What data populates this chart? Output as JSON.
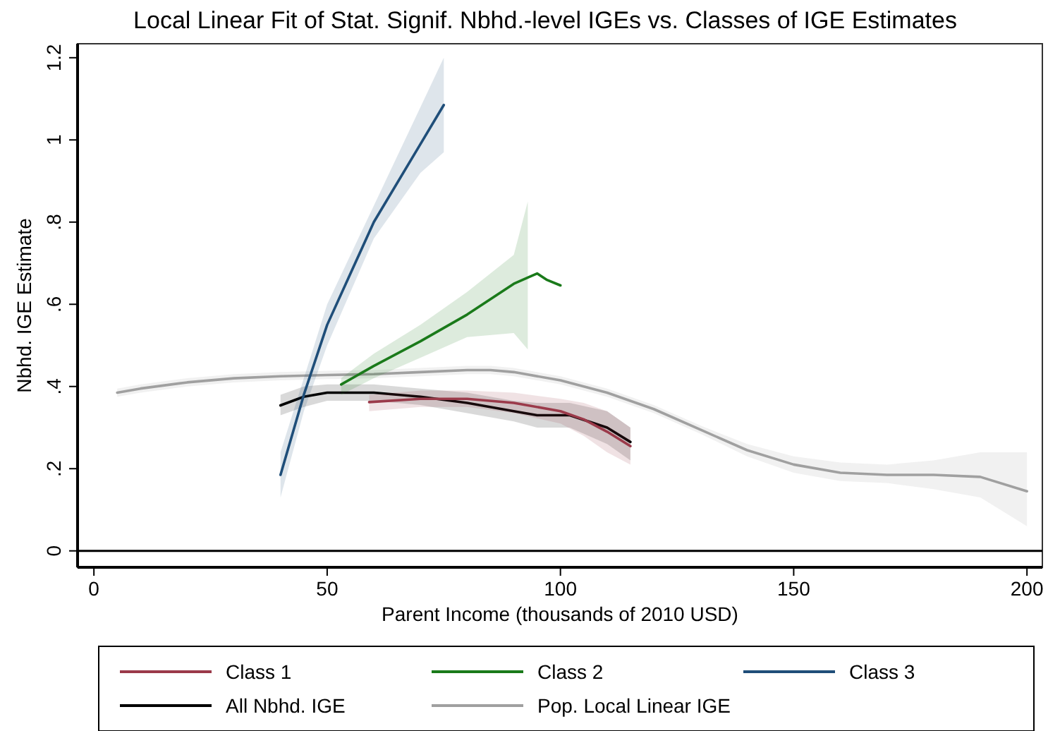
{
  "chart_data": {
    "type": "line",
    "title": "Local Linear Fit of Stat. Signif. Nbhd.-level IGEs vs. Classes of IGE Estimates",
    "xlabel": "Parent Income (thousands of 2010 USD)",
    "ylabel": "Nbhd. IGE Estimate",
    "xlim": [
      -3.5,
      203.3
    ],
    "xticks": [
      0,
      50,
      100,
      150,
      200
    ],
    "ylim": [
      -0.04,
      1.234
    ],
    "yticks": [
      0,
      {
        "value": 0.2,
        "label": ".2"
      },
      {
        "value": 0.4,
        "label": ".4"
      },
      {
        "value": 0.6,
        "label": ".6"
      },
      {
        "value": 0.8,
        "label": ".8"
      },
      1,
      {
        "value": 1.2,
        "label": "1.2"
      }
    ],
    "grid": false,
    "legend": "bottom",
    "line_style": "solid",
    "marker": "none",
    "ref_lines": [
      {
        "axis": "y",
        "value": 0,
        "color": "#000000"
      }
    ],
    "series": [
      {
        "name": "Class 1",
        "color": "#9b3a4a",
        "x": [
          59,
          70,
          80,
          90,
          100,
          105,
          110,
          115
        ],
        "values": [
          0.362,
          0.37,
          0.37,
          0.36,
          0.34,
          0.32,
          0.29,
          0.255
        ],
        "lower": [
          0.34,
          0.35,
          0.35,
          0.335,
          0.31,
          0.28,
          0.24,
          0.21
        ],
        "upper": [
          0.38,
          0.39,
          0.39,
          0.385,
          0.37,
          0.36,
          0.34,
          0.3
        ]
      },
      {
        "name": "Class 2",
        "color": "#1a7a1a",
        "x": [
          53,
          60,
          70,
          80,
          90,
          93,
          95,
          97,
          100
        ],
        "values": [
          0.405,
          0.45,
          0.51,
          0.575,
          0.65,
          0.665,
          0.675,
          0.66,
          0.646
        ],
        "lower": [
          0.38,
          0.42,
          0.47,
          0.52,
          0.53,
          0.49,
          null,
          null,
          null
        ],
        "upper": [
          0.42,
          0.48,
          0.55,
          0.63,
          0.72,
          0.85,
          null,
          null,
          null
        ]
      },
      {
        "name": "Class 3",
        "color": "#1f4e79",
        "x": [
          40,
          45,
          50,
          60,
          70,
          75
        ],
        "values": [
          0.185,
          0.38,
          0.55,
          0.8,
          0.99,
          1.085
        ],
        "lower": [
          0.13,
          0.34,
          0.5,
          0.76,
          0.92,
          0.97
        ],
        "upper": [
          0.24,
          0.42,
          0.6,
          0.84,
          1.08,
          1.2
        ]
      },
      {
        "name": "All Nbhd. IGE",
        "color": "#000000",
        "x": [
          40,
          45,
          50,
          60,
          70,
          80,
          90,
          95,
          102,
          110,
          115
        ],
        "values": [
          0.354,
          0.375,
          0.385,
          0.385,
          0.375,
          0.36,
          0.34,
          0.33,
          0.33,
          0.3,
          0.265
        ],
        "lower": [
          0.33,
          0.35,
          0.365,
          0.365,
          0.355,
          0.335,
          0.315,
          0.3,
          0.3,
          0.26,
          0.22
        ],
        "upper": [
          0.38,
          0.4,
          0.405,
          0.405,
          0.395,
          0.385,
          0.365,
          0.36,
          0.36,
          0.34,
          0.3
        ]
      },
      {
        "name": "Pop. Local Linear IGE",
        "color": "#a0a0a0",
        "x": [
          5,
          10,
          20,
          30,
          40,
          50,
          60,
          70,
          80,
          85,
          90,
          100,
          110,
          120,
          130,
          140,
          150,
          160,
          170,
          180,
          190,
          200
        ],
        "values": [
          0.385,
          0.395,
          0.41,
          0.42,
          0.425,
          0.428,
          0.43,
          0.435,
          0.44,
          0.44,
          0.435,
          0.415,
          0.385,
          0.345,
          0.295,
          0.245,
          0.21,
          0.19,
          0.185,
          0.185,
          0.18,
          0.145
        ],
        "lower": [
          0.375,
          0.385,
          0.4,
          0.41,
          0.415,
          0.418,
          0.42,
          0.425,
          0.43,
          0.43,
          0.425,
          0.405,
          0.375,
          0.335,
          0.285,
          0.23,
          0.19,
          0.17,
          0.165,
          0.15,
          0.13,
          0.06
        ],
        "upper": [
          0.395,
          0.405,
          0.42,
          0.43,
          0.435,
          0.438,
          0.44,
          0.445,
          0.45,
          0.45,
          0.445,
          0.425,
          0.395,
          0.355,
          0.305,
          0.26,
          0.23,
          0.215,
          0.21,
          0.22,
          0.24,
          0.24
        ]
      }
    ]
  }
}
